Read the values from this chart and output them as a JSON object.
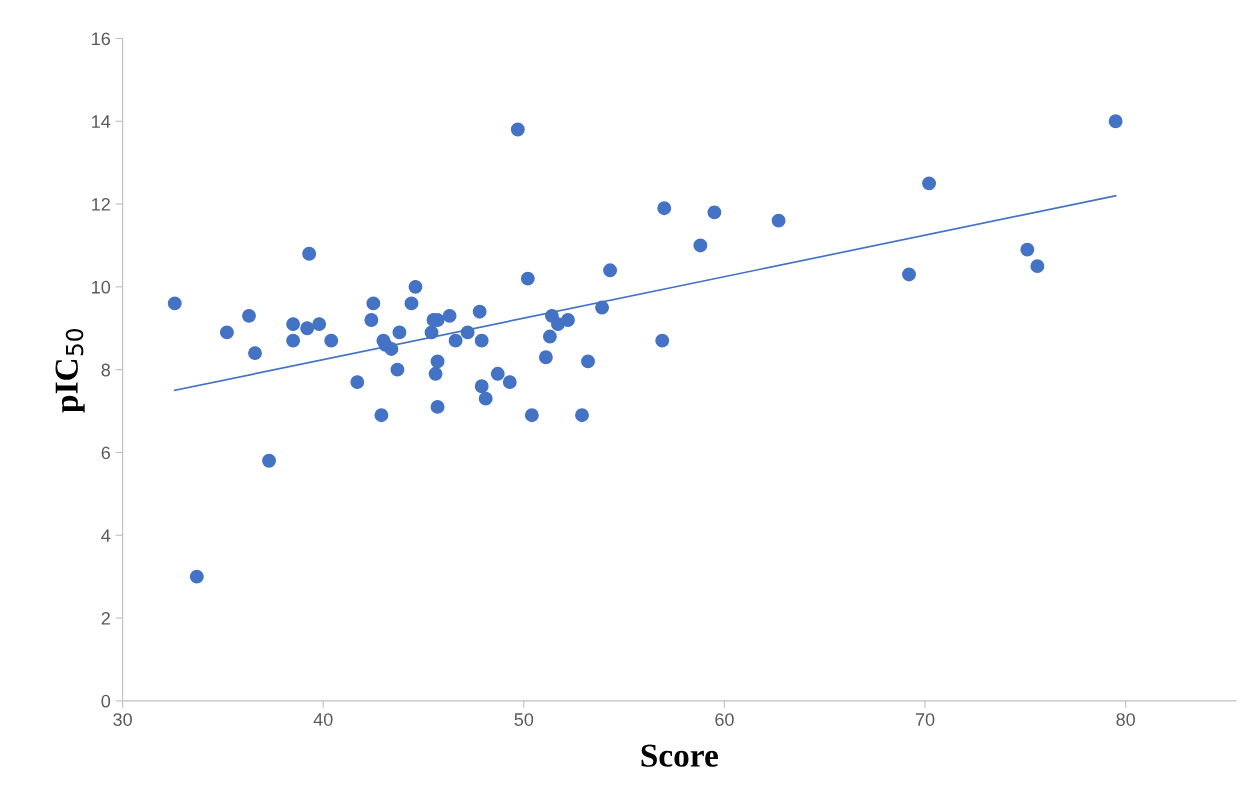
{
  "chart_data": {
    "type": "scatter",
    "xlabel": "Score",
    "ylabel": "pIC$_{50}$",
    "xlim": [
      30,
      85.5
    ],
    "xticks": [
      30,
      40,
      50,
      60,
      70,
      80
    ],
    "ylim": [
      0,
      16
    ],
    "yticks": [
      0,
      2,
      4,
      6,
      8,
      10,
      12,
      14,
      16
    ],
    "grid": false,
    "legend": false,
    "series": [
      {
        "type": "scatter",
        "marker": "circle",
        "color": "#4472c4",
        "x": [
          32.6,
          33.7,
          35.2,
          36.3,
          36.6,
          37.3,
          38.5,
          38.5,
          39.2,
          39.3,
          39.8,
          40.4,
          41.7,
          42.4,
          42.5,
          42.9,
          43.0,
          43.1,
          43.4,
          43.7,
          43.8,
          44.4,
          44.6,
          45.4,
          45.5,
          45.7,
          45.6,
          45.7,
          45.7,
          46.3,
          46.6,
          47.2,
          47.8,
          47.9,
          47.9,
          48.1,
          48.7,
          49.3,
          49.7,
          50.2,
          50.4,
          51.1,
          51.3,
          51.4,
          51.7,
          52.2,
          52.9,
          53.2,
          53.9,
          54.3,
          56.9,
          57.0,
          58.8,
          59.5,
          62.7,
          69.2,
          70.2,
          75.1,
          75.6,
          79.5
        ],
        "values": [
          9.6,
          3.0,
          8.9,
          9.3,
          8.4,
          5.8,
          9.1,
          8.7,
          9.0,
          10.8,
          9.1,
          8.7,
          7.7,
          9.2,
          9.6,
          6.9,
          8.7,
          8.6,
          8.5,
          8.0,
          8.9,
          9.6,
          10.0,
          8.9,
          9.2,
          9.2,
          7.9,
          8.2,
          7.1,
          9.3,
          8.7,
          8.9,
          9.4,
          8.7,
          7.6,
          7.3,
          7.9,
          7.7,
          13.8,
          10.2,
          6.9,
          8.3,
          8.8,
          9.3,
          9.1,
          9.2,
          6.9,
          8.2,
          9.5,
          10.4,
          8.7,
          11.9,
          11.0,
          11.8,
          11.6,
          10.3,
          12.5,
          10.9,
          10.5,
          14.0
        ]
      },
      {
        "type": "line",
        "color": "#4472c4",
        "line_style": "solid",
        "x": [
          32.6,
          79.5
        ],
        "values": [
          7.5,
          12.2
        ]
      }
    ]
  }
}
